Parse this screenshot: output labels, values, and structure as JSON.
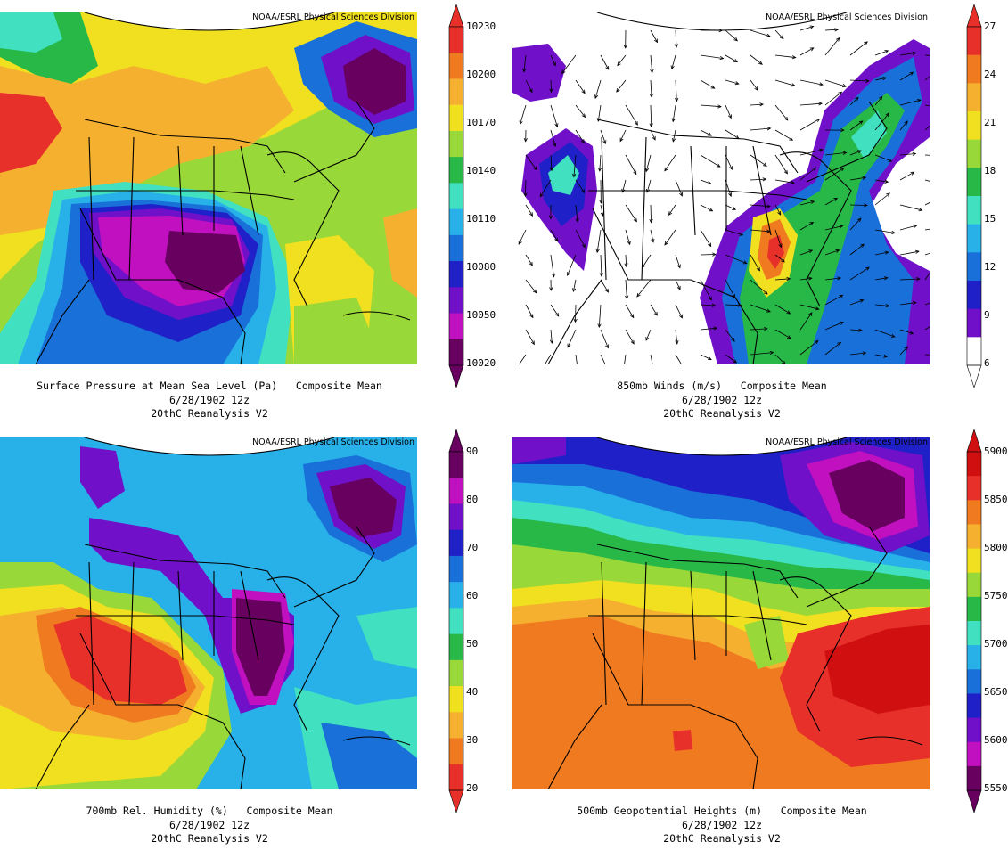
{
  "credit": "NOAA/ESRL Physical Sciences Division",
  "panels": [
    {
      "id": "slp",
      "caption_line1": "Surface Pressure at Mean Sea Level (Pa)   Composite Mean",
      "caption_line2": "6/28/1902 12z",
      "caption_line3": "20thC Reanalysis V2",
      "colorbar_ticks": [
        "10230",
        "10200",
        "10170",
        "10140",
        "10110",
        "10080",
        "10050",
        "10020"
      ],
      "colorbar_colors": [
        "#e8302a",
        "#f07a20",
        "#f5b030",
        "#f0e020",
        "#98d838",
        "#28b848",
        "#40e0c0",
        "#28b0e8",
        "#1870d8",
        "#2020c8",
        "#7010c8",
        "#c010c0",
        "#680060"
      ],
      "fill_colors": {
        "background": "#f0e020",
        "low": "#680060",
        "high": "#e8302a"
      }
    },
    {
      "id": "winds850",
      "caption_line1": "850mb Winds (m/s)   Composite Mean",
      "caption_line2": "6/28/1902 12z",
      "caption_line3": "20thC Reanalysis V2",
      "colorbar_ticks": [
        "27",
        "24",
        "21",
        "18",
        "15",
        "12",
        "9",
        "6"
      ],
      "colorbar_colors": [
        "#e8302a",
        "#f07a20",
        "#f5b030",
        "#f0e020",
        "#98d838",
        "#28b848",
        "#40e0c0",
        "#28b0e8",
        "#1870d8",
        "#2020c8",
        "#7010c8",
        "#ffffff"
      ],
      "fill_colors": {
        "background": "#ffffff",
        "max": "#e8302a"
      }
    },
    {
      "id": "rh700",
      "caption_line1": "700mb Rel. Humidity (%)   Composite Mean",
      "caption_line2": "6/28/1902 12z",
      "caption_line3": "20thC Reanalysis V2",
      "colorbar_ticks": [
        "90",
        "80",
        "70",
        "60",
        "50",
        "40",
        "30",
        "20"
      ],
      "colorbar_colors": [
        "#680060",
        "#c010c0",
        "#7010c8",
        "#2020c8",
        "#1870d8",
        "#28b0e8",
        "#40e0c0",
        "#28b848",
        "#98d838",
        "#f0e020",
        "#f5b030",
        "#f07a20",
        "#e8302a"
      ],
      "fill_colors": {
        "background": "#28b0e8",
        "dry": "#e8302a",
        "wet": "#680060"
      }
    },
    {
      "id": "z500",
      "caption_line1": "500mb Geopotential Heights (m)   Composite Mean",
      "caption_line2": "6/28/1902 12z",
      "caption_line3": "20thC Reanalysis V2",
      "colorbar_ticks": [
        "5900",
        "5850",
        "5800",
        "5750",
        "5700",
        "5650",
        "5600",
        "5550"
      ],
      "colorbar_colors": [
        "#d01010",
        "#e8302a",
        "#f07a20",
        "#f5b030",
        "#f0e020",
        "#98d838",
        "#28b848",
        "#40e0c0",
        "#28b0e8",
        "#1870d8",
        "#2020c8",
        "#7010c8",
        "#c010c0",
        "#680060"
      ],
      "fill_colors": {
        "background": "#f07a20",
        "low": "#680060",
        "high": "#d01010"
      }
    }
  ]
}
